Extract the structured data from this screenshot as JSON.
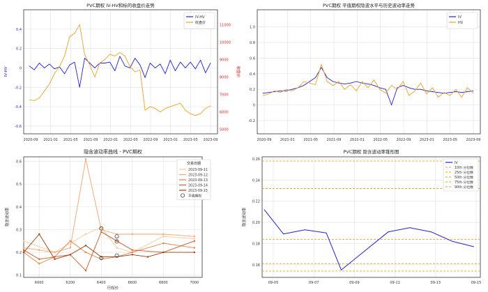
{
  "chart_data": [
    {
      "id": "p1",
      "type": "line",
      "title": "PVC期权 IV-HV和标的收盘价走势",
      "xlabel": "",
      "ylabel": "IV-HV",
      "ylabel_right": "收盘价",
      "ylim": [
        -0.68,
        0.6
      ],
      "ylim_right": [
        4750,
        11850
      ],
      "yticks": [
        "-0.6",
        "-0.4",
        "-0.2",
        "0",
        "0.2",
        "0.4"
      ],
      "yticks_right": [
        "5000",
        "6000",
        "7000",
        "8000",
        "9000",
        "10000",
        "11000"
      ],
      "xticks": [
        "2020-09",
        "2021-01",
        "2021-05",
        "2021-09",
        "2022-01",
        "2022-05",
        "2022-09",
        "2023-01",
        "2023-05",
        "2023-09"
      ],
      "grid": true,
      "legend_position": "top-right",
      "series": [
        {
          "name": "IV-HV",
          "color": "#1f1fe6",
          "axis": "left",
          "x": [
            0,
            1,
            2,
            3,
            4,
            5,
            6,
            7,
            8,
            9,
            10,
            11,
            12,
            13,
            14,
            15,
            16,
            17,
            18,
            19,
            20,
            21,
            22,
            23,
            24,
            25,
            26,
            27,
            28,
            29,
            30,
            31,
            32,
            33,
            34,
            35,
            36
          ],
          "values": [
            0.02,
            -0.02,
            0.05,
            0.0,
            0.04,
            -0.01,
            0.01,
            -0.06,
            0.03,
            0.06,
            -0.2,
            0.1,
            0.05,
            0.0,
            0.05,
            0.05,
            0.06,
            -0.03,
            0.12,
            0.02,
            0.0,
            0.1,
            0.03,
            -0.1,
            0.05,
            0.0,
            0.04,
            -0.06,
            0.08,
            -0.03,
            0.06,
            0.0,
            0.06,
            -0.01,
            0.08,
            -0.05,
            0.05
          ]
        },
        {
          "name": "收盘价",
          "color": "#f2a01a",
          "axis": "right",
          "x": [
            0,
            1,
            2,
            3,
            4,
            5,
            6,
            7,
            8,
            9,
            10,
            11,
            12,
            13,
            14,
            15,
            16,
            17,
            18,
            19,
            20,
            21,
            22,
            23,
            24,
            25,
            26,
            27,
            28,
            29,
            30,
            31,
            32,
            33,
            34,
            35,
            36
          ],
          "values": [
            6700,
            6650,
            6800,
            7200,
            7600,
            8200,
            8600,
            9200,
            10300,
            10500,
            11000,
            9300,
            8700,
            8000,
            8800,
            9000,
            9300,
            9200,
            9400,
            9200,
            8600,
            8300,
            8400,
            6100,
            6300,
            6200,
            6000,
            6200,
            6300,
            6400,
            6500,
            6100,
            5900,
            5800,
            5900,
            6200,
            6350
          ]
        }
      ]
    },
    {
      "id": "p2",
      "type": "line",
      "title": "PVC期权 平值期权隐波水平与历史波动率走势",
      "xlabel": "",
      "ylabel": "",
      "ylim": [
        -0.37,
        1.22
      ],
      "yticks": [
        "-0.2",
        "0",
        "0.2",
        "0.4",
        "0.6",
        "0.8",
        "1.0"
      ],
      "xticks": [
        "2020-09",
        "2021-01",
        "2021-05",
        "2021-09",
        "2022-01",
        "2022-05",
        "2022-09",
        "2023-01",
        "2023-05",
        "2023-09"
      ],
      "grid": true,
      "legend_position": "top-right",
      "series": [
        {
          "name": "IV",
          "color": "#1f1fe6",
          "x": [
            0,
            1,
            2,
            3,
            4,
            5,
            6,
            7,
            8,
            9,
            10,
            11,
            12,
            13,
            14,
            15,
            16,
            17,
            18,
            19,
            20,
            21,
            22,
            23,
            24,
            25,
            26,
            27,
            28,
            29,
            30,
            31,
            32,
            33,
            34,
            35,
            36
          ],
          "values": [
            0.15,
            0.16,
            0.17,
            0.18,
            0.18,
            0.2,
            0.22,
            0.25,
            0.3,
            0.35,
            0.48,
            0.35,
            0.3,
            0.28,
            0.27,
            0.28,
            0.3,
            0.28,
            0.27,
            0.25,
            0.22,
            0.2,
            0.0,
            0.22,
            0.25,
            0.22,
            0.2,
            0.2,
            0.18,
            0.17,
            0.16,
            0.15,
            0.16,
            0.17,
            0.16,
            0.17,
            0.18
          ]
        },
        {
          "name": "HV",
          "color": "#f2a01a",
          "x": [
            0,
            1,
            2,
            3,
            4,
            5,
            6,
            7,
            8,
            9,
            10,
            11,
            12,
            13,
            14,
            15,
            16,
            17,
            18,
            19,
            20,
            21,
            22,
            23,
            24,
            25,
            26,
            27,
            28,
            29,
            30,
            31,
            32,
            33,
            34,
            35,
            36
          ],
          "values": [
            0.12,
            0.14,
            0.18,
            0.16,
            0.2,
            0.18,
            0.22,
            0.3,
            0.28,
            0.26,
            0.52,
            0.3,
            0.25,
            0.3,
            0.2,
            0.26,
            0.18,
            0.3,
            0.22,
            0.32,
            0.2,
            0.15,
            0.25,
            0.2,
            0.3,
            0.12,
            0.18,
            0.28,
            0.14,
            0.22,
            0.1,
            0.16,
            0.12,
            0.2,
            0.1,
            0.22,
            0.15
          ]
        }
      ]
    },
    {
      "id": "p3",
      "type": "line",
      "title": "隐含波动率曲线 - PVC期权",
      "xlabel": "行权价",
      "ylabel": "隐含波动率",
      "xlim": [
        5900,
        7050
      ],
      "ylim": [
        0.09,
        0.62
      ],
      "xticks": [
        "6000",
        "6200",
        "6400",
        "6600",
        "6800",
        "7000"
      ],
      "yticks": [
        "0.1",
        "0.2",
        "0.3",
        "0.4",
        "0.5",
        "0.6"
      ],
      "grid": true,
      "legend_title": "交易日期",
      "legend_position": "top-right",
      "atm_label": "平值期权",
      "series": [
        {
          "name": "2023-09-11",
          "color": "#fdc793",
          "x": [
            5900,
            6100,
            6300,
            6400,
            6500,
            6600,
            6800,
            7000
          ],
          "values": [
            0.25,
            0.2,
            0.28,
            0.31,
            0.22,
            0.2,
            0.27,
            0.26
          ]
        },
        {
          "name": "2023-09-12",
          "color": "#f9a26a",
          "x": [
            5900,
            6000,
            6100,
            6200,
            6300,
            6400,
            6500,
            6600,
            6800,
            7000
          ],
          "values": [
            0.22,
            0.21,
            0.2,
            0.22,
            0.61,
            0.3,
            0.28,
            0.28,
            0.28,
            0.27
          ]
        },
        {
          "name": "2023-09-13",
          "color": "#ef7d3f",
          "x": [
            5900,
            6000,
            6100,
            6200,
            6300,
            6400,
            6500,
            6600,
            6800,
            7000
          ],
          "values": [
            0.2,
            0.15,
            0.18,
            0.25,
            0.2,
            0.17,
            0.18,
            0.2,
            0.24,
            0.22
          ]
        },
        {
          "name": "2023-09-14",
          "color": "#d9581f",
          "x": [
            5900,
            6000,
            6100,
            6200,
            6300,
            6400,
            6500,
            6600,
            6800,
            7000
          ],
          "values": [
            0.21,
            0.17,
            0.18,
            0.19,
            0.12,
            0.29,
            0.25,
            0.21,
            0.2,
            0.25
          ]
        },
        {
          "name": "2023-09-15",
          "color": "#a23a0a",
          "x": [
            5900,
            6000,
            6100,
            6200,
            6300,
            6400,
            6500,
            6600,
            6700,
            6800,
            7000
          ],
          "values": [
            0.2,
            0.28,
            0.17,
            0.19,
            0.23,
            0.18,
            0.18,
            0.19,
            0.18,
            0.2,
            0.2
          ]
        }
      ],
      "atm_points": [
        {
          "x": 6400,
          "y": 0.305
        },
        {
          "x": 6400,
          "y": 0.175
        },
        {
          "x": 6500,
          "y": 0.27
        },
        {
          "x": 6500,
          "y": 0.248
        },
        {
          "x": 6500,
          "y": 0.186
        }
      ]
    },
    {
      "id": "p4",
      "type": "line",
      "title": "PVC期权 隐含波动率锥形图",
      "xlabel": "",
      "ylabel": "隐含波动率",
      "xlim": [
        -0.6,
        9.6
      ],
      "ylim": [
        0.148,
        0.262
      ],
      "xticks": [
        "09-05",
        "09-07",
        "09-09",
        "09-11",
        "09-13",
        "09-15"
      ],
      "xtick_positions": [
        0,
        2,
        4,
        6,
        8,
        10
      ],
      "yticks": [
        "0.16",
        "0.18",
        "0.20",
        "0.22",
        "0.24",
        "0.26"
      ],
      "grid": true,
      "legend_position": "top-right",
      "series": [
        {
          "name": "IV",
          "color": "#1f1fe6",
          "x": [
            -0.5,
            0.4,
            1.4,
            2.4,
            3.1,
            5.3,
            6.3,
            7.3,
            8.3,
            9.3
          ],
          "values": [
            0.212,
            0.189,
            0.193,
            0.19,
            0.155,
            0.191,
            0.195,
            0.191,
            0.182,
            0.177
          ]
        }
      ],
      "quantiles": [
        {
          "name": "10th 分位数",
          "value": 0.154
        },
        {
          "name": "25th 分位数",
          "value": 0.161
        },
        {
          "name": "50th 分位数",
          "value": 0.184
        },
        {
          "name": "75th 分位数",
          "value": 0.232
        },
        {
          "name": "90th 分位数",
          "value": 0.258
        }
      ],
      "quantile_color": "#f2a01a"
    }
  ]
}
